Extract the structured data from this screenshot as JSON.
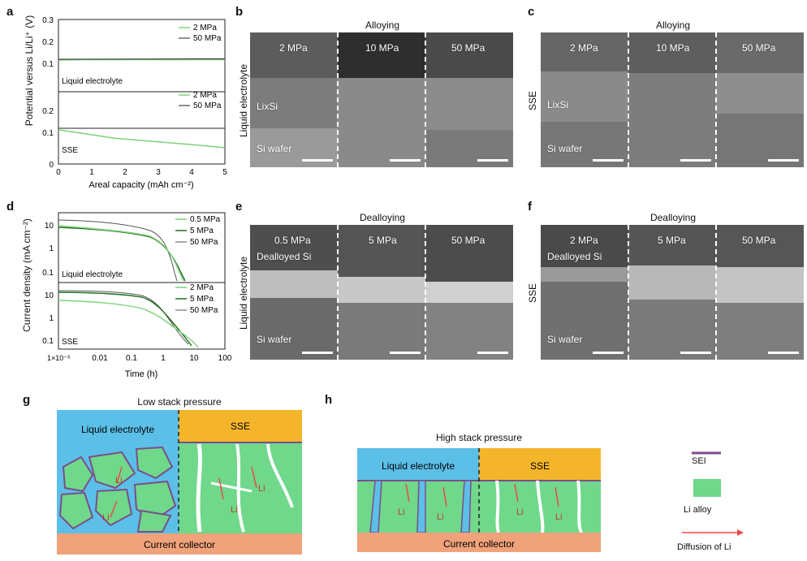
{
  "panel_labels": {
    "a": "a",
    "b": "b",
    "c": "c",
    "d": "d",
    "e": "e",
    "f": "f",
    "g": "g",
    "h": "h"
  },
  "panel_a": {
    "ylabel": "Potential versus Li/Li⁺ (V)",
    "xlabel": "Areal capacity (mAh cm⁻²)",
    "xticks": [
      "0",
      "1",
      "2",
      "3",
      "4",
      "5"
    ],
    "yticks_top": [
      "0.3",
      "0.2",
      "0.1"
    ],
    "yticks_bottom": [
      "0.2",
      "0.1",
      "0"
    ],
    "top_label": "Liquid electrolyte",
    "bottom_label": "SSE",
    "legend": [
      "2 MPa",
      "50 MPa"
    ]
  },
  "panel_d": {
    "ylabel": "Current density (mA cm⁻²)",
    "xlabel": "Time (h)",
    "xticks": [
      "1×10⁻³",
      "0.01",
      "0.1",
      "1",
      "10",
      "100"
    ],
    "yticks": [
      "10",
      "1",
      "0.1"
    ],
    "top_label": "Liquid electrolyte",
    "bottom_label": "SSE",
    "legend_top": [
      "0.5 MPa",
      "5 MPa",
      "50 MPa"
    ],
    "legend_bottom": [
      "2 MPa",
      "5 MPa",
      "50 MPa"
    ]
  },
  "panel_b": {
    "title": "Alloying",
    "side": "Liquid electrolyte",
    "cols": [
      "2 MPa",
      "10 MPa",
      "50 MPa"
    ],
    "layer1": "LixSi",
    "layer2": "Si wafer"
  },
  "panel_c": {
    "title": "Alloying",
    "side": "SSE",
    "cols": [
      "2 MPa",
      "10 MPa",
      "50 MPa"
    ],
    "layer1": "LixSi",
    "layer2": "Si wafer"
  },
  "panel_e": {
    "title": "Dealloying",
    "side": "Liquid electrolyte",
    "cols": [
      "0.5 MPa",
      "5 MPa",
      "50 MPa"
    ],
    "layer1": "Dealloyed Si",
    "layer2": "Si wafer"
  },
  "panel_f": {
    "title": "Dealloying",
    "side": "SSE",
    "cols": [
      "2 MPa",
      "5 MPa",
      "50 MPa"
    ],
    "layer1": "Dealloyed Si",
    "layer2": "Si wafer"
  },
  "panel_g": {
    "title": "Low stack pressure",
    "left": "Liquid electrolyte",
    "right": "SSE",
    "bottom": "Current collector",
    "li": "Li"
  },
  "panel_h": {
    "title": "High stack pressure",
    "left": "Liquid electrolyte",
    "right": "SSE",
    "bottom": "Current collector",
    "li": "Li"
  },
  "legend": {
    "sei": "SEI",
    "alloy": "Li alloy",
    "diffusion": "Diffusion of Li"
  },
  "colors": {
    "light_green": "#7ed37a",
    "dark_green": "#1f6e1f",
    "black": "#222222",
    "sei": "#7b4e8a",
    "alloy": "#6fd88a",
    "liquid": "#5bbfe8",
    "sse": "#f5b52a",
    "collector": "#f0a27a",
    "arrow": "#e84a4a"
  }
}
